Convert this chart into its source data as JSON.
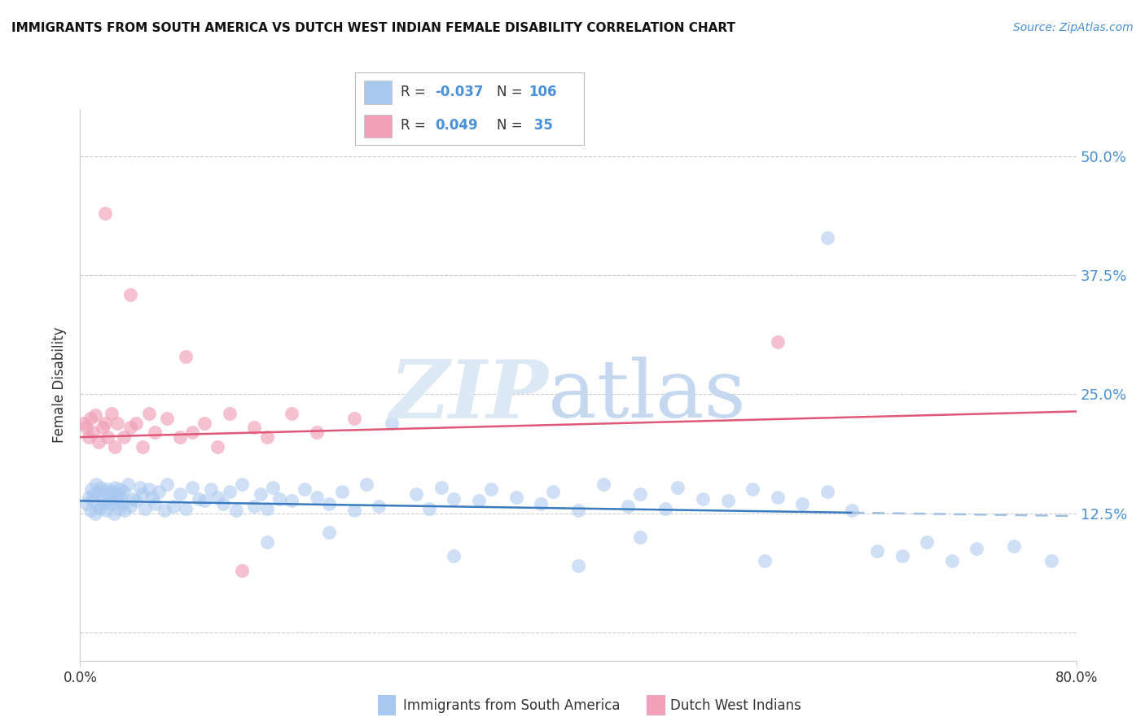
{
  "title": "IMMIGRANTS FROM SOUTH AMERICA VS DUTCH WEST INDIAN FEMALE DISABILITY CORRELATION CHART",
  "source": "Source: ZipAtlas.com",
  "ylabel": "Female Disability",
  "xlim": [
    0.0,
    80.0
  ],
  "ylim": [
    -3.0,
    55.0
  ],
  "yticks": [
    0.0,
    12.5,
    25.0,
    37.5,
    50.0
  ],
  "ytick_labels": [
    "",
    "12.5%",
    "25.0%",
    "37.5%",
    "50.0%"
  ],
  "blue_color": "#a8c8f0",
  "pink_color": "#f0a0b8",
  "blue_line_color": "#3a7abf",
  "blue_line_dash_color": "#a0c0e0",
  "pink_line_color": "#e05878",
  "blue_line_y0": 13.8,
  "blue_line_y1": 12.2,
  "blue_solid_x_end": 62.0,
  "pink_line_y0": 20.5,
  "pink_line_y1": 23.2,
  "blue_scatter_x": [
    0.5,
    0.7,
    0.8,
    0.9,
    1.0,
    1.1,
    1.2,
    1.3,
    1.4,
    1.5,
    1.6,
    1.7,
    1.8,
    1.9,
    2.0,
    2.1,
    2.2,
    2.3,
    2.4,
    2.5,
    2.6,
    2.7,
    2.8,
    2.9,
    3.0,
    3.1,
    3.2,
    3.3,
    3.4,
    3.5,
    3.6,
    3.8,
    4.0,
    4.2,
    4.5,
    4.8,
    5.0,
    5.2,
    5.5,
    5.8,
    6.0,
    6.3,
    6.8,
    7.0,
    7.5,
    8.0,
    8.5,
    9.0,
    9.5,
    10.0,
    10.5,
    11.0,
    11.5,
    12.0,
    12.5,
    13.0,
    14.0,
    14.5,
    15.0,
    15.5,
    16.0,
    17.0,
    18.0,
    19.0,
    20.0,
    21.0,
    22.0,
    23.0,
    24.0,
    25.0,
    27.0,
    28.0,
    29.0,
    30.0,
    32.0,
    33.0,
    35.0,
    37.0,
    38.0,
    40.0,
    42.0,
    44.0,
    45.0,
    47.0,
    48.0,
    50.0,
    52.0,
    54.0,
    56.0,
    58.0,
    60.0,
    62.0,
    64.0,
    66.0,
    68.0,
    70.0,
    72.0,
    75.0,
    78.0,
    60.0,
    45.0,
    20.0,
    55.0,
    40.0,
    30.0,
    15.0
  ],
  "blue_scatter_y": [
    13.5,
    14.2,
    12.8,
    15.0,
    13.8,
    14.5,
    12.5,
    15.5,
    13.2,
    14.8,
    13.0,
    15.2,
    14.0,
    13.5,
    14.8,
    12.8,
    15.0,
    13.8,
    14.2,
    13.5,
    14.8,
    12.5,
    15.2,
    13.8,
    14.5,
    13.0,
    15.0,
    14.2,
    13.5,
    14.8,
    12.8,
    15.5,
    13.2,
    14.0,
    13.8,
    15.2,
    14.5,
    13.0,
    15.0,
    14.2,
    13.5,
    14.8,
    12.8,
    15.5,
    13.2,
    14.5,
    13.0,
    15.2,
    14.0,
    13.8,
    15.0,
    14.2,
    13.5,
    14.8,
    12.8,
    15.5,
    13.2,
    14.5,
    13.0,
    15.2,
    14.0,
    13.8,
    15.0,
    14.2,
    13.5,
    14.8,
    12.8,
    15.5,
    13.2,
    22.0,
    14.5,
    13.0,
    15.2,
    14.0,
    13.8,
    15.0,
    14.2,
    13.5,
    14.8,
    12.8,
    15.5,
    13.2,
    14.5,
    13.0,
    15.2,
    14.0,
    13.8,
    15.0,
    14.2,
    13.5,
    14.8,
    12.8,
    8.5,
    8.0,
    9.5,
    7.5,
    8.8,
    9.0,
    7.5,
    41.5,
    10.0,
    10.5,
    7.5,
    7.0,
    8.0,
    9.5
  ],
  "pink_scatter_x": [
    0.3,
    0.5,
    0.7,
    0.8,
    1.0,
    1.2,
    1.5,
    1.8,
    2.0,
    2.2,
    2.5,
    2.8,
    3.0,
    3.5,
    4.0,
    4.5,
    5.0,
    5.5,
    6.0,
    7.0,
    8.0,
    9.0,
    10.0,
    11.0,
    12.0,
    13.0,
    14.0,
    15.0,
    17.0,
    19.0,
    22.0,
    56.0,
    2.0,
    4.0,
    8.5
  ],
  "pink_scatter_y": [
    22.0,
    21.5,
    20.5,
    22.5,
    21.0,
    22.8,
    20.0,
    21.5,
    22.0,
    20.5,
    23.0,
    19.5,
    22.0,
    20.5,
    21.5,
    22.0,
    19.5,
    23.0,
    21.0,
    22.5,
    20.5,
    21.0,
    22.0,
    19.5,
    23.0,
    6.5,
    21.5,
    20.5,
    23.0,
    21.0,
    22.5,
    30.5,
    44.0,
    35.5,
    29.0
  ]
}
